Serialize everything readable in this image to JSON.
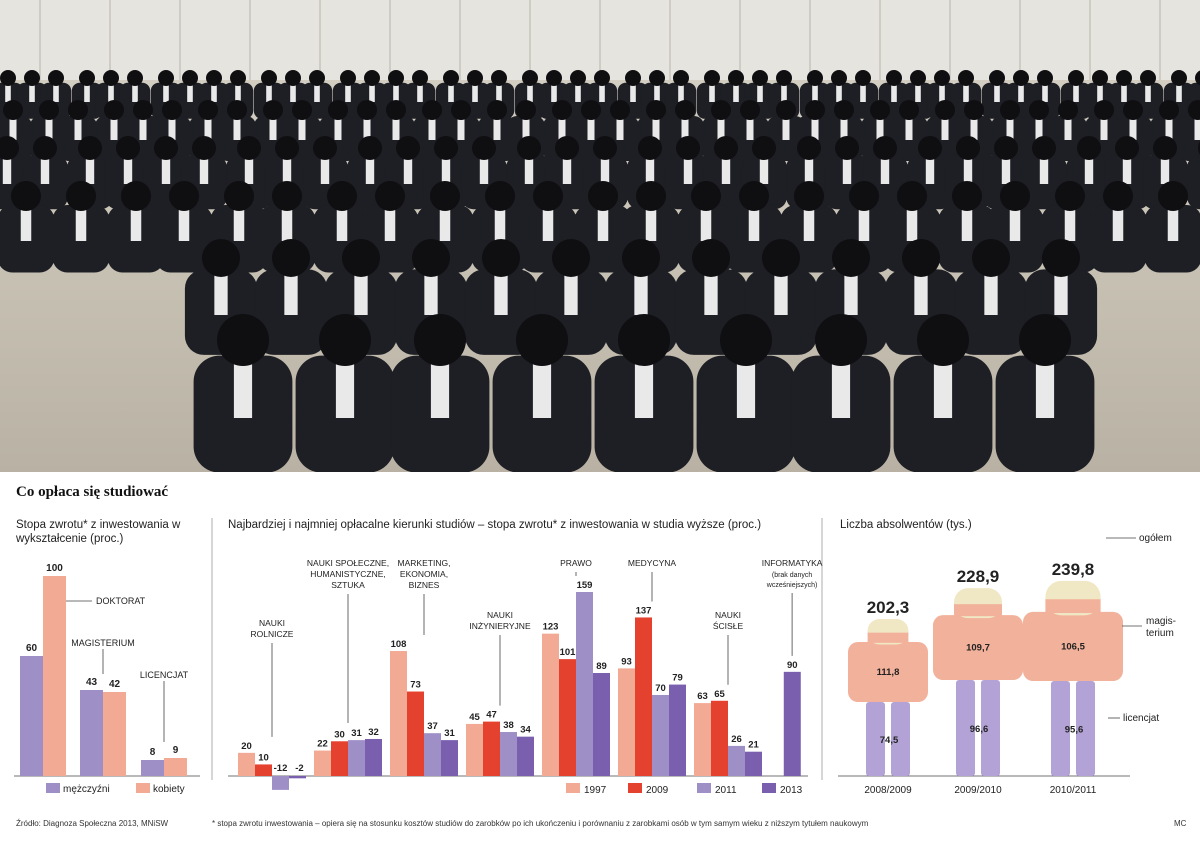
{
  "title": "Co opłaca się studiować",
  "colors": {
    "purple": "#9e8fc6",
    "peach": "#f2aa95",
    "red": "#e5412f",
    "dark_purple": "#7a5fae",
    "body_peach": "#f2b19a",
    "head": "#f0e7c4",
    "legs": "#b3a2d6"
  },
  "chart_data": [
    {
      "type": "bar",
      "title": "Stopa zwrotu* z inwestowania w wykształcenie (proc.)",
      "categories": [
        "DOKTORAT",
        "MAGISTERIUM",
        "LICENCJAT"
      ],
      "series": [
        {
          "name": "mężczyźni",
          "values": [
            60,
            43,
            8
          ]
        },
        {
          "name": "kobiety",
          "values": [
            100,
            42,
            9
          ]
        }
      ],
      "value_labels": [
        [
          "60",
          "100"
        ],
        [
          "43",
          "42"
        ],
        [
          "8",
          "9"
        ]
      ],
      "legend": [
        "mężczyźni",
        "kobiety"
      ],
      "ylim": [
        0,
        100
      ]
    },
    {
      "type": "bar",
      "title": "Najbardziej i najmniej opłacalne kierunki studiów – stopa zwrotu* z inwestowania w studia wyższe (proc.)",
      "categories": [
        "NAUKI ROLNICZE",
        "NAUKI SPOŁECZNE, HUMANISTYCZNE, SZTUKA",
        "MARKETING, EKONOMIA, BIZNES",
        "NAUKI INŻYNIERYJNE",
        "PRAWO",
        "MEDYCYNA",
        "NAUKI ŚCISŁE",
        "INFORMATYKA"
      ],
      "category_lines": [
        [
          "NAUKI",
          "ROLNICZE"
        ],
        [
          "NAUKI SPOŁECZNE,",
          "HUMANISTYCZNE,",
          "SZTUKA"
        ],
        [
          "MARKETING,",
          "EKONOMIA,",
          "BIZNES"
        ],
        [
          "NAUKI",
          "INŻYNIERYJNE"
        ],
        [
          "PRAWO"
        ],
        [
          "MEDYCYNA"
        ],
        [
          "NAUKI",
          "ŚCISŁE"
        ],
        [
          "INFORMATYKA"
        ]
      ],
      "category_note": [
        "(brak danych",
        "wcześniejszych)"
      ],
      "series": [
        {
          "name": "1997",
          "values": [
            20,
            22,
            108,
            45,
            123,
            93,
            63,
            null
          ]
        },
        {
          "name": "2009",
          "values": [
            10,
            30,
            73,
            47,
            101,
            137,
            65,
            null
          ]
        },
        {
          "name": "2011",
          "values": [
            -12,
            31,
            37,
            38,
            159,
            70,
            26,
            null
          ]
        },
        {
          "name": "2013",
          "values": [
            -2,
            32,
            31,
            34,
            89,
            79,
            21,
            90
          ]
        }
      ],
      "legend": [
        "1997",
        "2009",
        "2011",
        "2013"
      ]
    },
    {
      "type": "bar",
      "title": "Liczba absolwentów (tys.)",
      "categories": [
        "2008/2009",
        "2009/2010",
        "2010/2011"
      ],
      "totals": [
        "202,3",
        "228,9",
        "239,8"
      ],
      "series": [
        {
          "name": "magisterium",
          "values": [
            111.8,
            109.7,
            106.5
          ],
          "labels": [
            "111,8",
            "109,7",
            "106,5"
          ]
        },
        {
          "name": "licencjat",
          "values": [
            74.5,
            96.6,
            95.6
          ],
          "labels": [
            "74,5",
            "96,6",
            "95,6"
          ]
        }
      ],
      "annotations": {
        "total": "ogółem",
        "magisterium": [
          "magis-",
          "terium"
        ],
        "licencjat": "licencjat"
      }
    }
  ],
  "footer": {
    "source": "Źródło: Diagnoza Społeczna 2013, MNiSW",
    "note": "* stopa zwrotu inwestowania – opiera się na stosunku kosztów studiów do zarobków po ich ukończeniu i porównaniu z zarobkami osób w tym samym wieku z niższym tytułem naukowym",
    "initials": "MC"
  }
}
